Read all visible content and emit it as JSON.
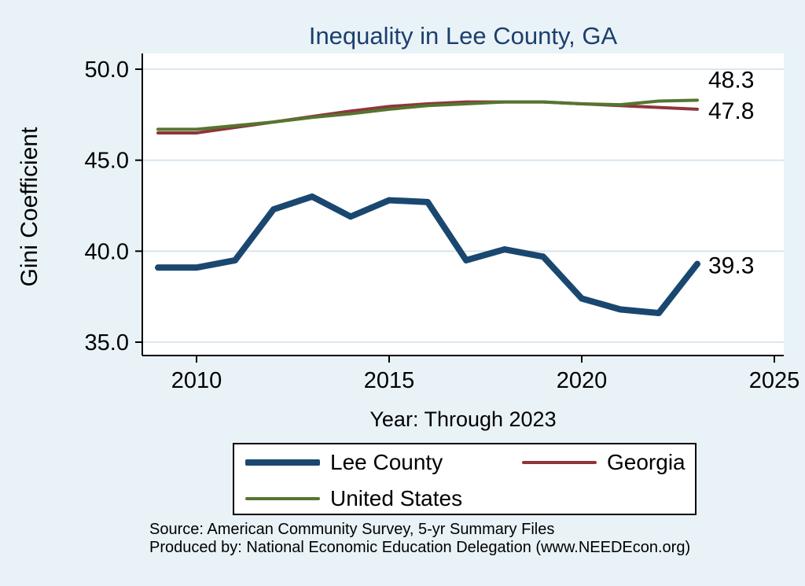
{
  "chart_data": {
    "type": "line",
    "title": "Inequality in Lee County, GA",
    "xlabel": "Year: Through 2023",
    "ylabel": "Gini Coefficient",
    "x": [
      2009,
      2010,
      2011,
      2012,
      2013,
      2014,
      2015,
      2016,
      2017,
      2018,
      2019,
      2020,
      2021,
      2022,
      2023
    ],
    "series": [
      {
        "name": "Lee County",
        "color": "#1a476f",
        "width": 8,
        "values": [
          39.1,
          39.1,
          39.5,
          42.3,
          43.0,
          41.9,
          42.8,
          42.7,
          39.5,
          40.1,
          39.7,
          37.4,
          36.8,
          36.6,
          39.3
        ],
        "end_label": "39.3"
      },
      {
        "name": "Georgia",
        "color": "#90353b",
        "width": 4,
        "values": [
          46.5,
          46.5,
          46.8,
          47.1,
          47.4,
          47.7,
          47.95,
          48.1,
          48.2,
          48.2,
          48.2,
          48.1,
          48.0,
          47.9,
          47.8
        ],
        "end_label": "47.8"
      },
      {
        "name": "United States",
        "color": "#55752f",
        "width": 4,
        "values": [
          46.7,
          46.7,
          46.9,
          47.1,
          47.35,
          47.55,
          47.8,
          48.0,
          48.1,
          48.2,
          48.2,
          48.1,
          48.05,
          48.25,
          48.3
        ],
        "end_label": "48.3"
      }
    ],
    "yticks": [
      35,
      40,
      45,
      50
    ],
    "ytick_labels": [
      "35.0",
      "40.0",
      "45.0",
      "50.0"
    ],
    "xticks": [
      2010,
      2015,
      2020,
      2025
    ],
    "ylim": [
      34.3,
      50.9
    ],
    "xlim": [
      2008.6,
      2025.2
    ],
    "grid": true,
    "legend_position": "bottom"
  },
  "footer": {
    "source": "Source: American Community Survey, 5-yr Summary Files",
    "produced_by": "Produced by: National Economic Education Delegation (www.NEEDEcon.org)"
  },
  "colors": {
    "background": "#e9f3f7",
    "plot_background": "#ffffff",
    "grid": "#cfe0ea",
    "axis": "#000000",
    "title": "#1c3f6e",
    "lee_county": "#1a476f",
    "georgia": "#90353b",
    "united_states": "#55752f"
  }
}
